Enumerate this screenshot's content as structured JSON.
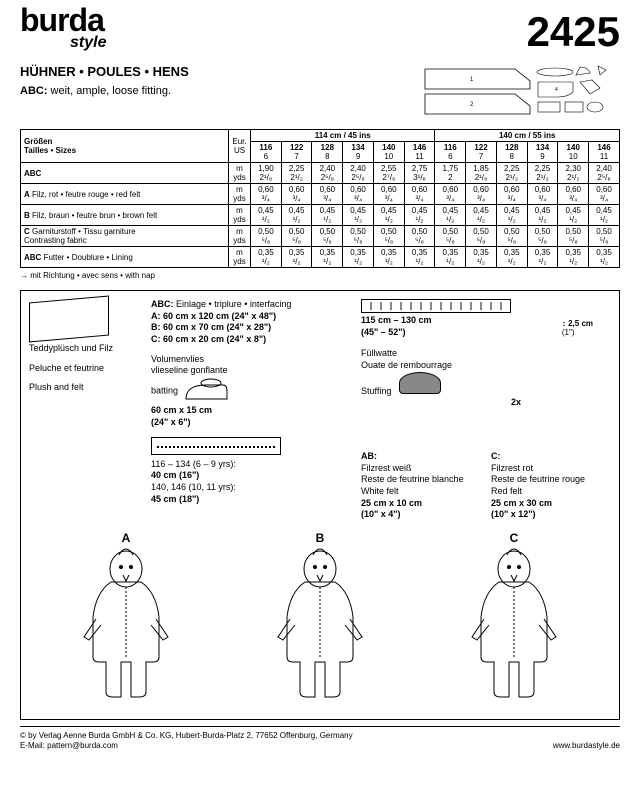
{
  "logo": {
    "main": "burda",
    "sub": "style"
  },
  "patternNumber": "2425",
  "title": "HÜHNER • POULES • HENS",
  "subtitle": {
    "prefix": "ABC:",
    "text": " weit, ample, loose fitting."
  },
  "nap": "→ mit Richtung • avec sens • with nap",
  "widths": {
    "w1": "114 cm / 45 ins",
    "w2": "140 cm / 55 ins"
  },
  "sizeHeader": {
    "de": "Größen",
    "fr": "Tailles • Sizes",
    "eur": "Eur.",
    "us": "US"
  },
  "sizes": {
    "eur": [
      "116",
      "122",
      "128",
      "134",
      "140",
      "146"
    ],
    "us": [
      "6",
      "7",
      "8",
      "9",
      "10",
      "11"
    ]
  },
  "rows": [
    {
      "label": "ABC",
      "desc": "",
      "m": [
        "1,90",
        "2,25",
        "2,40",
        "2,40",
        "2,55",
        "2,75",
        "1,75",
        "1,85",
        "2,25",
        "2,25",
        "2,30",
        "2,40"
      ],
      "y": [
        "2¹/₈",
        "2¹/₂",
        "2⁵/₈",
        "2⁵/₈",
        "2⁷/₈",
        "3¹/₈",
        "2",
        "2¹/₈",
        "2¹/₂",
        "2¹/₂",
        "2¹/₂",
        "2⁵/₈"
      ],
      "arrow": true
    },
    {
      "label": "A",
      "desc": "Filz, rot • feutre rouge • red felt",
      "m": [
        "0,60",
        "0,60",
        "0,60",
        "0,60",
        "0,60",
        "0,60",
        "0,60",
        "0,60",
        "0,60",
        "0,60",
        "0,60",
        "0,60"
      ],
      "y": [
        "³/₄",
        "³/₄",
        "³/₄",
        "³/₄",
        "³/₄",
        "³/₄",
        "³/₄",
        "³/₄",
        "³/₄",
        "³/₄",
        "³/₄",
        "³/₄"
      ]
    },
    {
      "label": "B",
      "desc": "Filz, braun • feutre brun • brown felt",
      "m": [
        "0,45",
        "0,45",
        "0,45",
        "0,45",
        "0,45",
        "0,45",
        "0,45",
        "0,45",
        "0,45",
        "0,45",
        "0,45",
        "0,45"
      ],
      "y": [
        "¹/₂",
        "¹/₂",
        "¹/₂",
        "¹/₂",
        "¹/₂",
        "¹/₂",
        "¹/₂",
        "¹/₂",
        "¹/₂",
        "¹/₂",
        "¹/₂",
        "¹/₂"
      ]
    },
    {
      "label": "C",
      "desc": "Garniturstoff • Tissu garniture\nContrasting fabric",
      "m": [
        "0,50",
        "0,50",
        "0,50",
        "0,50",
        "0,50",
        "0,50",
        "0,50",
        "0,50",
        "0,50",
        "0,50",
        "0,50",
        "0,50"
      ],
      "y": [
        "⁵/₈",
        "⁵/₈",
        "⁵/₈",
        "⁵/₈",
        "⁵/₈",
        "⁵/₈",
        "⁵/₈",
        "⁵/₈",
        "⁵/₈",
        "⁵/₈",
        "⁵/₈",
        "⁵/₈"
      ],
      "arrow": true
    },
    {
      "label": "ABC",
      "desc": "Futter • Doublure • Lining",
      "m": [
        "0,35",
        "0,35",
        "0,35",
        "0,35",
        "0,35",
        "0,35",
        "0,35",
        "0,35",
        "0,35",
        "0,35",
        "0,35",
        "0,35"
      ],
      "y": [
        "¹/₂",
        "¹/₂",
        "¹/₂",
        "¹/₂",
        "¹/₂",
        "¹/₂",
        "¹/₂",
        "¹/₂",
        "¹/₂",
        "¹/₂",
        "¹/₂",
        "¹/₂"
      ]
    }
  ],
  "fabricNames": {
    "de": "Teddyplüsch und Filz",
    "fr": "Peluche et feutrine",
    "en": "Plush and felt"
  },
  "interfacing": {
    "hdr": "ABC:",
    "text": "Einlage • triplure • interfacing",
    "a": "A: 60 cm x 120 cm (24\" x 48\")",
    "b": "B: 60 cm x 70 cm (24\" x 28\")",
    "c": "C: 60 cm x 20 cm (24\" x 8\")"
  },
  "batting": {
    "l1": "Volumenvlies",
    "l2": "vlieseline gonflante",
    "l3": "batting",
    "dim": "60 cm x 15 cm",
    "dim2": "(24\" x 6\")"
  },
  "zipper": {
    "s1": "116 – 134 (6 – 9 yrs):",
    "v1": "40 cm (16\")",
    "s2": "140, 146 (10, 11 yrs):",
    "v2": "45 cm (18\")"
  },
  "elastic": {
    "w": "115 cm – 130 cm",
    "w2": "(45\" – 52\")",
    "h": "2,5 cm",
    "h2": "(1\")"
  },
  "stuffing": {
    "l1": "Füllwatte",
    "l2": "Ouate de rembourrage",
    "l3": "Stuffing",
    "qty": "2x"
  },
  "ab": {
    "hdr": "AB:",
    "l1": "Filzrest weiß",
    "l2": "Reste de feutrine blanche",
    "l3": "White felt",
    "dim": "25 cm x 10 cm",
    "dim2": "(10\" x 4\")"
  },
  "c": {
    "hdr": "C:",
    "l1": "Filzrest rot",
    "l2": "Reste de feutrine rouge",
    "l3": "Red felt",
    "dim": "25 cm x 30 cm",
    "dim2": "(10\" x 12\")"
  },
  "variants": [
    "A",
    "B",
    "C"
  ],
  "footer": {
    "l1": "© by Verlag Aenne Burda GmbH & Co. KG, Hubert-Burda-Platz 2, 77652 Offenburg, Germany",
    "l2": "E-Mail: pattern@burda.com",
    "url": "www.burdastyle.de"
  }
}
